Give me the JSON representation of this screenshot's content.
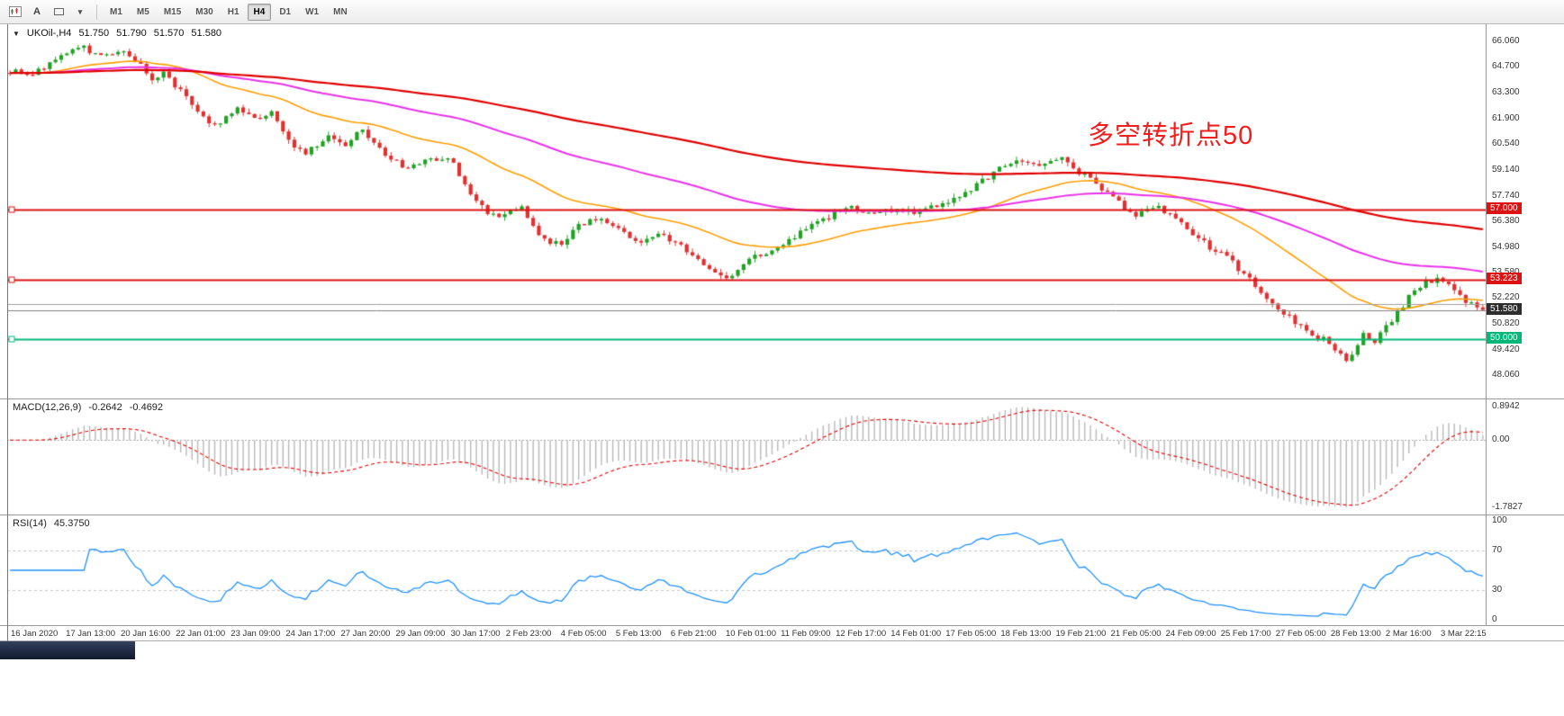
{
  "toolbar": {
    "text_tool_label": "A",
    "timeframes": [
      "M1",
      "M5",
      "M15",
      "M30",
      "H1",
      "H4",
      "D1",
      "W1",
      "MN"
    ],
    "active_timeframe": "H4"
  },
  "chart_header": {
    "symbol": "UKOil-,H4",
    "open": "51.750",
    "high": "51.790",
    "low": "51.570",
    "close": "51.580"
  },
  "annotation": {
    "text": "多空转折点50",
    "color": "#f21d1d"
  },
  "price_axis_labels": [
    "66.060",
    "64.700",
    "63.300",
    "61.900",
    "60.540",
    "59.140",
    "57.740",
    "56.380",
    "54.980",
    "53.580",
    "52.220",
    "50.820",
    "49.420",
    "48.060"
  ],
  "hlines": [
    {
      "value": 57.0,
      "label": "57.000",
      "color": "#dd1111",
      "width": 2,
      "handle": true
    },
    {
      "value": 53.223,
      "label": "53.223",
      "color": "#dd1111",
      "width": 2,
      "handle": true
    },
    {
      "value": 51.9,
      "color": "#9f9f9f",
      "width": 1
    },
    {
      "value": 50.0,
      "label": "50.000",
      "color": "#00b878",
      "width": 2,
      "handle": true
    }
  ],
  "current_price_label": "51.580",
  "macd": {
    "title": "MACD(12,26,9)",
    "value_main": "-0.2642",
    "value_signal": "-0.4692",
    "axis_labels": [
      "0.8942",
      "0.00",
      "-1.7827"
    ],
    "range": [
      -1.7827,
      0.8942
    ]
  },
  "rsi": {
    "title": "RSI(14)",
    "value": "45.3750",
    "axis_labels": [
      "100",
      "70",
      "30",
      "0"
    ],
    "levels": [
      70,
      30
    ]
  },
  "time_axis_labels": [
    "16 Jan 2020",
    "17 Jan 13:00",
    "20 Jan 16:00",
    "22 Jan 01:00",
    "23 Jan 09:00",
    "24 Jan 17:00",
    "27 Jan 20:00",
    "29 Jan 09:00",
    "30 Jan 17:00",
    "2 Feb 23:00",
    "4 Feb 05:00",
    "5 Feb 13:00",
    "6 Feb 21:00",
    "10 Feb 01:00",
    "11 Feb 09:00",
    "12 Feb 17:00",
    "14 Feb 01:00",
    "17 Feb 05:00",
    "18 Feb 13:00",
    "19 Feb 21:00",
    "21 Feb 05:00",
    "24 Feb 09:00",
    "25 Feb 17:00",
    "27 Feb 05:00",
    "28 Feb 13:00",
    "2 Mar 16:00",
    "3 Mar 22:15"
  ],
  "colors": {
    "up": "#21a126",
    "down": "#e03030",
    "ma_fast": "#ff9d00",
    "ma_mid": "#e832e8",
    "ma_slow": "#e00000",
    "macd_hist": "#b8b8b8",
    "macd_signal": "#e00000",
    "rsi": "#1e90ff"
  },
  "chart_data": {
    "type": "candlestick",
    "symbol": "UKOil-",
    "timeframe": "H4",
    "bars": 260,
    "ylim": [
      46.8,
      67.0
    ],
    "last_close": 51.58,
    "ohlc_last": [
      51.75,
      51.79,
      51.57,
      51.58
    ],
    "price_path": [
      [
        0.0,
        64.5
      ],
      [
        0.012,
        64.2
      ],
      [
        0.03,
        65.0
      ],
      [
        0.048,
        65.9
      ],
      [
        0.058,
        65.3
      ],
      [
        0.075,
        65.55
      ],
      [
        0.088,
        64.9
      ],
      [
        0.095,
        63.95
      ],
      [
        0.104,
        64.4
      ],
      [
        0.138,
        61.5
      ],
      [
        0.156,
        62.5
      ],
      [
        0.168,
        61.9
      ],
      [
        0.178,
        62.4
      ],
      [
        0.19,
        60.7
      ],
      [
        0.2,
        60.0
      ],
      [
        0.215,
        60.9
      ],
      [
        0.228,
        60.5
      ],
      [
        0.238,
        61.3
      ],
      [
        0.252,
        60.2
      ],
      [
        0.268,
        59.2
      ],
      [
        0.285,
        59.7
      ],
      [
        0.298,
        59.9
      ],
      [
        0.312,
        57.8
      ],
      [
        0.324,
        56.9
      ],
      [
        0.336,
        56.6
      ],
      [
        0.346,
        57.3
      ],
      [
        0.362,
        55.3
      ],
      [
        0.374,
        55.1
      ],
      [
        0.386,
        56.2
      ],
      [
        0.4,
        56.5
      ],
      [
        0.414,
        55.8
      ],
      [
        0.426,
        55.3
      ],
      [
        0.44,
        55.7
      ],
      [
        0.456,
        55.0
      ],
      [
        0.468,
        54.3
      ],
      [
        0.48,
        53.5
      ],
      [
        0.489,
        53.3
      ],
      [
        0.502,
        54.3
      ],
      [
        0.516,
        54.8
      ],
      [
        0.53,
        55.4
      ],
      [
        0.545,
        56.1
      ],
      [
        0.558,
        56.7
      ],
      [
        0.572,
        57.1
      ],
      [
        0.586,
        56.8
      ],
      [
        0.6,
        57.0
      ],
      [
        0.616,
        56.9
      ],
      [
        0.63,
        57.3
      ],
      [
        0.645,
        57.7
      ],
      [
        0.658,
        58.4
      ],
      [
        0.672,
        59.2
      ],
      [
        0.688,
        59.7
      ],
      [
        0.7,
        59.4
      ],
      [
        0.712,
        59.8
      ],
      [
        0.726,
        59.0
      ],
      [
        0.738,
        58.4
      ],
      [
        0.75,
        57.6
      ],
      [
        0.763,
        56.6
      ],
      [
        0.776,
        57.2
      ],
      [
        0.788,
        56.8
      ],
      [
        0.8,
        55.9
      ],
      [
        0.815,
        54.9
      ],
      [
        0.828,
        54.3
      ],
      [
        0.842,
        53.2
      ],
      [
        0.856,
        52.0
      ],
      [
        0.868,
        51.2
      ],
      [
        0.88,
        50.4
      ],
      [
        0.893,
        50.0
      ],
      [
        0.904,
        49.2
      ],
      [
        0.91,
        48.8
      ],
      [
        0.918,
        50.4
      ],
      [
        0.926,
        49.8
      ],
      [
        0.938,
        51.0
      ],
      [
        0.95,
        52.3
      ],
      [
        0.962,
        53.1
      ],
      [
        0.972,
        53.2
      ],
      [
        0.982,
        52.4
      ],
      [
        0.991,
        51.9
      ],
      [
        1.0,
        51.58
      ]
    ]
  }
}
